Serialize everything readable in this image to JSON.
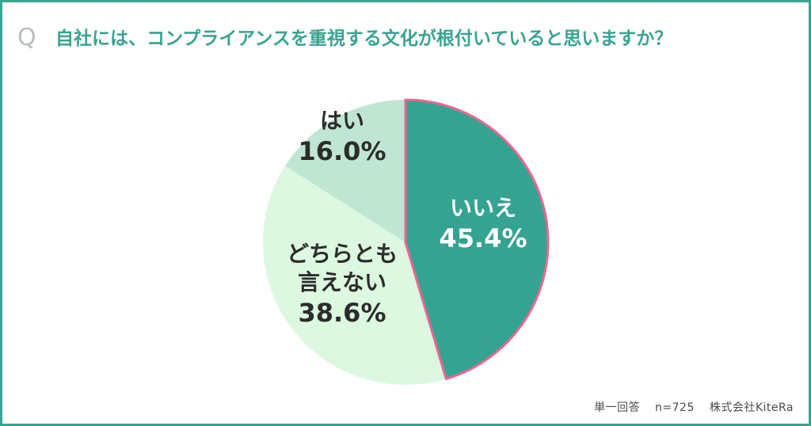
{
  "question_mark": "Q",
  "question": "自社には、コンプライアンスを重視する文化が根付いていると思いますか？",
  "footer": {
    "answer_type": "単一回答",
    "sample": "n=725",
    "company": "株式会社KiteRa"
  },
  "colors": {
    "frame": "#3aa391",
    "title": "#3aa391",
    "highlight_outline": "#e8688f"
  },
  "chart_data": {
    "type": "pie",
    "start": "12 o'clock, clockwise",
    "slices": [
      {
        "label": "いいえ",
        "value": 45.4,
        "value_label": "45.4%",
        "color": "#35a392",
        "text_color": "#ffffff",
        "highlight": true
      },
      {
        "label": "どちらとも言えない",
        "label_lines": [
          "どちらとも",
          "言えない"
        ],
        "value": 38.6,
        "value_label": "38.6%",
        "color": "#dcf8e0",
        "text_color": "#2c2c2c",
        "highlight": false
      },
      {
        "label": "はい",
        "value": 16.0,
        "value_label": "16.0%",
        "color": "#bfe6d3",
        "text_color": "#2c2c2c",
        "highlight": false
      }
    ]
  }
}
